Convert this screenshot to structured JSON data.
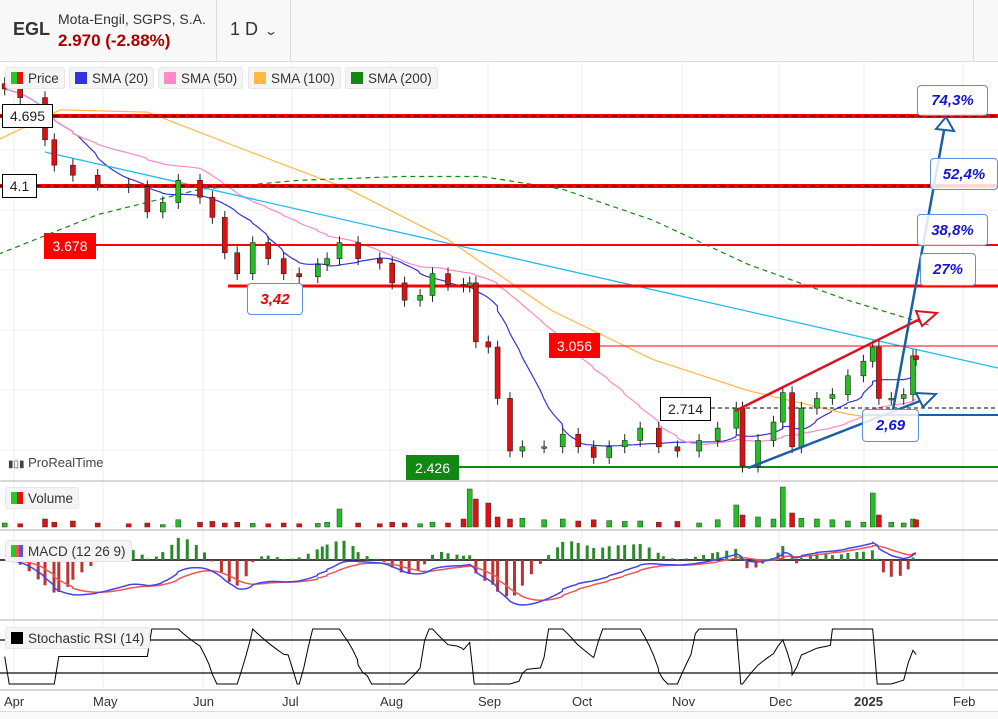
{
  "header": {
    "symbol": "EGL",
    "company": "Mota-Engil, SGPS, S.A.",
    "price_change": "2.970 (-2.88%)",
    "timeframe": "1 D",
    "chevron": "chevron-down-icon"
  },
  "legend": {
    "price": "Price",
    "sma20": "SMA (20)",
    "sma50": "SMA (50)",
    "sma100": "SMA (100)",
    "sma200": "SMA (200)",
    "volume": "Volume",
    "macd": "MACD (12 26 9)",
    "stochrsi": "Stochastic RSI (14)"
  },
  "colors": {
    "up": "#22c022",
    "down": "#dd1111",
    "sma20": "#3333dd",
    "sma50": "#ff88c8",
    "sma100": "#ffb840",
    "sma200": "#118811",
    "trend": "#22bbee",
    "level": "#ff0000"
  },
  "brand": "ProRealTime",
  "levels": {
    "l4695": "4.695",
    "l41": "4.1",
    "l3678": "3.678",
    "l342": "3,42",
    "l3056": "3.056",
    "l2714": "2.714",
    "l269": "2,69",
    "l2426": "2.426"
  },
  "targets": {
    "t1": "74,3%",
    "t2": "52,4%",
    "t3": "38,8%",
    "t4": "27%"
  },
  "x_axis": [
    "Apr",
    "May",
    "Jun",
    "Jul",
    "Aug",
    "Sep",
    "Oct",
    "Nov",
    "Dec",
    "2025",
    "Feb"
  ],
  "chart_data": {
    "type": "candlestick",
    "y_scale": "log",
    "closes": [
      [
        "2024-03-29",
        4.94
      ],
      [
        "2024-04-03",
        4.86
      ],
      [
        "2024-04-11",
        4.49
      ],
      [
        "2024-04-14",
        4.28
      ],
      [
        "2024-04-20",
        4.2
      ],
      [
        "2024-04-28",
        4.13
      ],
      [
        "2024-05-08",
        4.11
      ],
      [
        "2024-05-14",
        3.92
      ],
      [
        "2024-05-19",
        3.99
      ],
      [
        "2024-05-24",
        4.16
      ],
      [
        "2024-05-31",
        4.03
      ],
      [
        "2024-06-04",
        3.88
      ],
      [
        "2024-06-08",
        3.63
      ],
      [
        "2024-06-12",
        3.49
      ],
      [
        "2024-06-17",
        3.7
      ],
      [
        "2024-06-22",
        3.59
      ],
      [
        "2024-06-27",
        3.49
      ],
      [
        "2024-07-02",
        3.47
      ],
      [
        "2024-07-08",
        3.55
      ],
      [
        "2024-07-11",
        3.59
      ],
      [
        "2024-07-15",
        3.7
      ],
      [
        "2024-07-21",
        3.59
      ],
      [
        "2024-07-28",
        3.56
      ],
      [
        "2024-08-01",
        3.43
      ],
      [
        "2024-08-05",
        3.32
      ],
      [
        "2024-08-10",
        3.35
      ],
      [
        "2024-08-14",
        3.49
      ],
      [
        "2024-08-19",
        3.42
      ],
      [
        "2024-08-24",
        3.41
      ],
      [
        "2024-08-26",
        3.43
      ],
      [
        "2024-08-28",
        3.07
      ],
      [
        "2024-09-01",
        3.04
      ],
      [
        "2024-09-04",
        2.76
      ],
      [
        "2024-09-08",
        2.5
      ],
      [
        "2024-09-12",
        2.52
      ],
      [
        "2024-09-19",
        2.52
      ],
      [
        "2024-09-25",
        2.58
      ],
      [
        "2024-09-30",
        2.52
      ],
      [
        "2024-10-05",
        2.47
      ],
      [
        "2024-10-10",
        2.52
      ],
      [
        "2024-10-15",
        2.55
      ],
      [
        "2024-10-20",
        2.61
      ],
      [
        "2024-10-26",
        2.52
      ],
      [
        "2024-11-01",
        2.5
      ],
      [
        "2024-11-08",
        2.55
      ],
      [
        "2024-11-14",
        2.61
      ],
      [
        "2024-11-20",
        2.71
      ],
      [
        "2024-11-22",
        2.43
      ],
      [
        "2024-11-27",
        2.55
      ],
      [
        "2024-12-02",
        2.64
      ],
      [
        "2024-12-05",
        2.79
      ],
      [
        "2024-12-08",
        2.52
      ],
      [
        "2024-12-11",
        2.71
      ],
      [
        "2024-12-16",
        2.76
      ],
      [
        "2024-12-21",
        2.78
      ],
      [
        "2024-12-26",
        2.88
      ],
      [
        "2024-12-31",
        2.96
      ],
      [
        "2025-01-03",
        3.04
      ],
      [
        "2025-01-05",
        2.76
      ],
      [
        "2025-01-09",
        2.76
      ],
      [
        "2025-01-13",
        2.78
      ],
      [
        "2025-01-16",
        2.99
      ],
      [
        "2025-01-17",
        2.97
      ]
    ],
    "volume": [
      10,
      8,
      20,
      12,
      15,
      10,
      8,
      10,
      6,
      18,
      12,
      14,
      10,
      12,
      9,
      8,
      10,
      8,
      9,
      12,
      45,
      10,
      8,
      12,
      10,
      8,
      12,
      10,
      20,
      95,
      70,
      60,
      25,
      20,
      22,
      18,
      20,
      15,
      18,
      16,
      14,
      15,
      12,
      14,
      10,
      18,
      55,
      30,
      25,
      20,
      100,
      35,
      22,
      20,
      18,
      15,
      12,
      85,
      30,
      12,
      10,
      20,
      18
    ],
    "sma100": [
      [
        "2024-03-27",
        4.49
      ],
      [
        "2024-04-16",
        4.75
      ],
      [
        "2024-05-14",
        4.73
      ],
      [
        "2024-06-15",
        4.4
      ],
      [
        "2024-07-18",
        4.09
      ],
      [
        "2024-08-19",
        3.72
      ],
      [
        "2024-09-21",
        3.26
      ],
      [
        "2024-10-24",
        2.97
      ],
      [
        "2024-11-24",
        2.8
      ],
      [
        "2024-12-26",
        2.68
      ],
      [
        "2025-01-17",
        2.63
      ]
    ],
    "sma200": [
      [
        "2024-03-27",
        3.62
      ],
      [
        "2024-04-28",
        3.9
      ],
      [
        "2024-05-31",
        4.09
      ],
      [
        "2024-07-02",
        4.16
      ],
      [
        "2024-08-04",
        4.19
      ],
      [
        "2024-08-30",
        4.19
      ],
      [
        "2024-09-25",
        4.09
      ],
      [
        "2024-10-24",
        3.86
      ],
      [
        "2024-11-24",
        3.55
      ],
      [
        "2024-12-26",
        3.32
      ],
      [
        "2025-01-21",
        3.17
      ]
    ],
    "stoch_levels": [
      80,
      20
    ]
  }
}
